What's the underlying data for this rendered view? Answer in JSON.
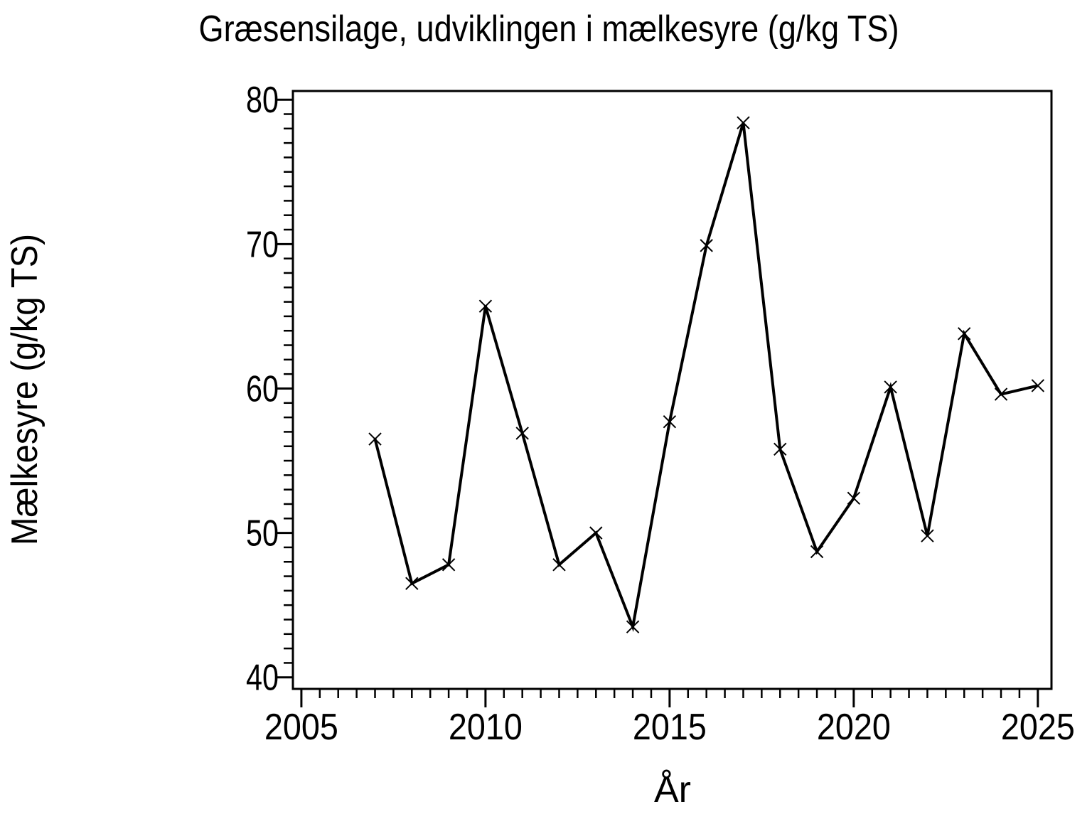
{
  "figure": {
    "background": "#ffffff",
    "foreground": "#000000"
  },
  "chart_data": {
    "type": "line",
    "title": "Græsensilage, udviklingen i mælkesyre (g/kg TS)",
    "xlabel": "År",
    "ylabel": "Mælkesyre (g/kg TS)",
    "series": [
      {
        "name": "mælkesyre",
        "x": [
          2007,
          2008,
          2009,
          2010,
          2011,
          2012,
          2013,
          2014,
          2015,
          2016,
          2017,
          2018,
          2019,
          2020,
          2021,
          2022,
          2023,
          2024,
          2025
        ],
        "values": [
          56.5,
          46.5,
          47.8,
          65.7,
          56.9,
          47.8,
          50.0,
          43.5,
          57.7,
          69.9,
          78.4,
          55.8,
          48.7,
          52.4,
          60.1,
          49.8,
          63.8,
          59.6,
          60.2
        ]
      }
    ],
    "marker": "x",
    "line_color": "#000000",
    "x_ticks": [
      2005,
      2010,
      2015,
      2020,
      2025
    ],
    "y_ticks": [
      40,
      50,
      60,
      70,
      80
    ],
    "x_minor_step": 0.5,
    "y_minor_step": 1,
    "xlim": [
      2004.77,
      2025.37
    ],
    "ylim": [
      39.2,
      80.6
    ],
    "grid": false,
    "legend": "none",
    "frame": true
  }
}
